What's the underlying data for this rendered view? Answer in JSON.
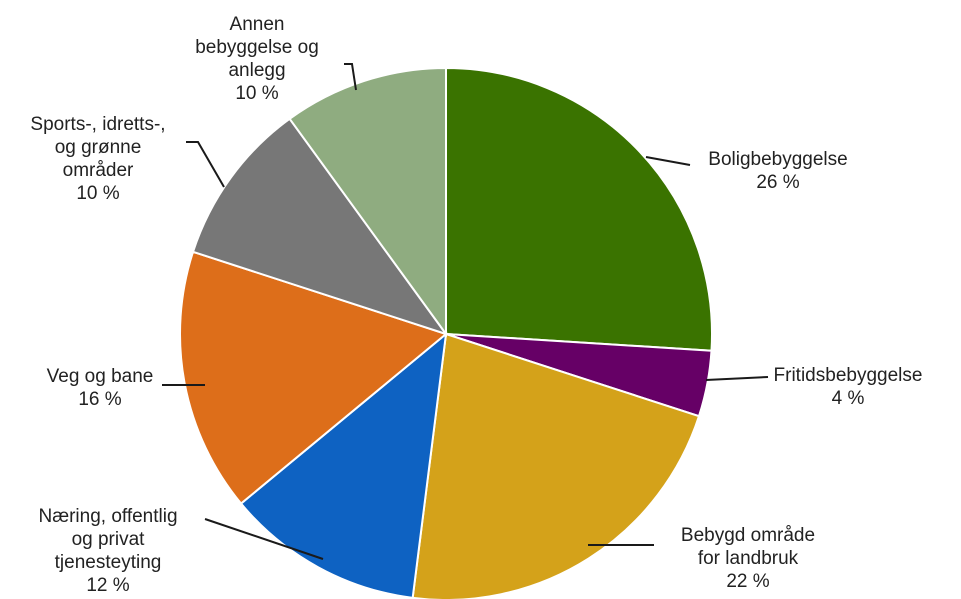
{
  "chart_data": {
    "type": "pie",
    "title": "",
    "start_angle_deg": 0,
    "direction": "clockwise",
    "slices": [
      {
        "label": [
          "Boligbebyggelse"
        ],
        "value": 26,
        "value_label": "26 %",
        "color": "#3a7300"
      },
      {
        "label": [
          "Fritidsbebyggelse"
        ],
        "value": 4,
        "value_label": "4 %",
        "color": "#660066"
      },
      {
        "label": [
          "Bebygd område",
          "for landbruk"
        ],
        "value": 22,
        "value_label": "22 %",
        "color": "#d4a21a"
      },
      {
        "label": [
          "Næring, offentlig",
          "og privat",
          "tjenesteyting"
        ],
        "value": 12,
        "value_label": "12 %",
        "color": "#0e62c2"
      },
      {
        "label": [
          "Veg og bane"
        ],
        "value": 16,
        "value_label": "16 %",
        "color": "#dd6e1a"
      },
      {
        "label": [
          "Sports-, idretts-,",
          "og grønne",
          "områder"
        ],
        "value": 10,
        "value_label": "10 %",
        "color": "#777777"
      },
      {
        "label": [
          "Annen",
          "bebyggelse og",
          "anlegg"
        ],
        "value": 10,
        "value_label": "10 %",
        "color": "#8fac80"
      }
    ]
  }
}
